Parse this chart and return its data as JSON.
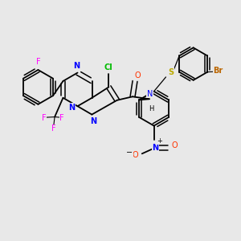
{
  "background_color": "#e8e8e8",
  "atom_colors": {
    "F": "#ff00ff",
    "Cl": "#00bb00",
    "N": "#0000ff",
    "O": "#ff3300",
    "S": "#bbaa00",
    "Br": "#bb6600",
    "C": "#000000",
    "H": "#000000"
  },
  "bond_color": "#000000",
  "figsize": [
    3.0,
    3.0
  ],
  "dpi": 100
}
